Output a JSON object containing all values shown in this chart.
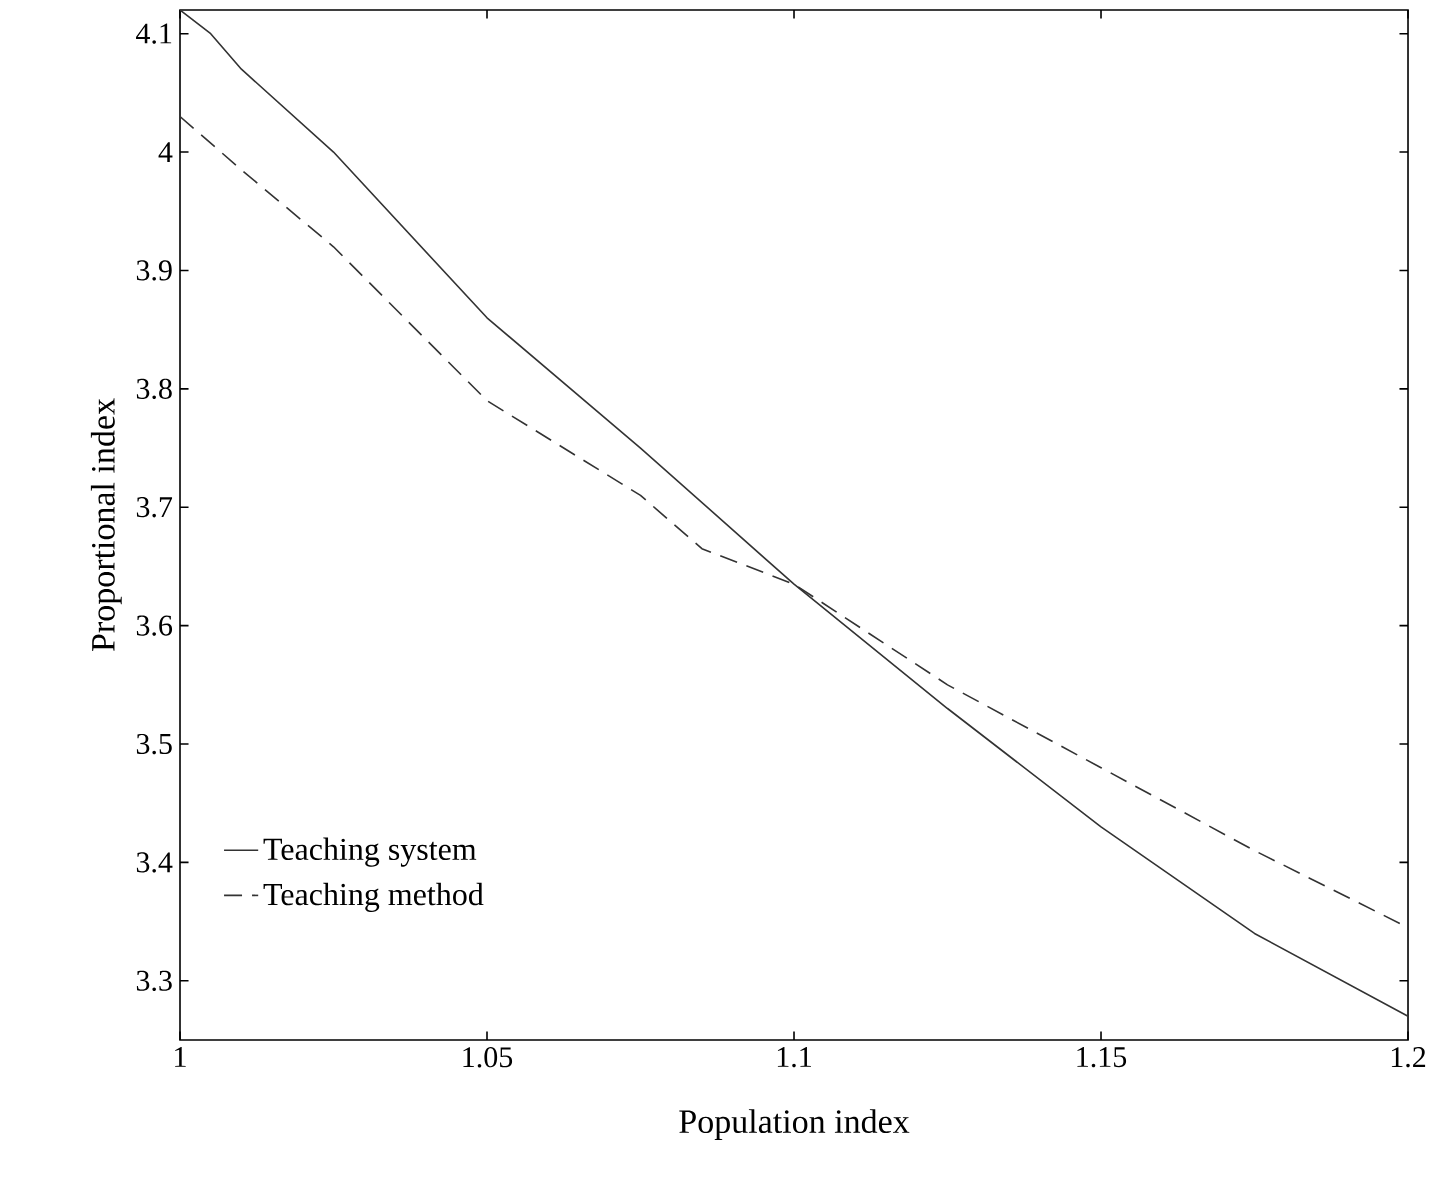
{
  "chart_data": {
    "type": "line",
    "xlabel": "Population index",
    "ylabel": "Proportional index",
    "xlim": [
      1,
      1.2
    ],
    "ylim": [
      3.25,
      4.12
    ],
    "xticks": [
      1,
      1.05,
      1.1,
      1.15,
      1.2
    ],
    "yticks": [
      3.3,
      3.4,
      3.5,
      3.6,
      3.7,
      3.8,
      3.9,
      {
        "value": 4,
        "label": "4"
      },
      4.1
    ],
    "legend": "bottom left",
    "grid": false,
    "series": [
      {
        "name": "Teaching system",
        "color": "#333333",
        "line_style": "solid",
        "x": [
          1.0,
          1.005,
          1.01,
          1.025,
          1.05,
          1.075,
          1.1,
          1.125,
          1.15,
          1.175,
          1.2
        ],
        "values": [
          4.12,
          4.1,
          4.07,
          4.0,
          3.86,
          3.75,
          3.635,
          3.53,
          3.43,
          3.34,
          3.27
        ]
      },
      {
        "name": "Teaching method",
        "color": "#333333",
        "line_style": "dashed",
        "x": [
          1.0,
          1.01,
          1.025,
          1.05,
          1.075,
          1.085,
          1.1,
          1.125,
          1.15,
          1.175,
          1.2
        ],
        "values": [
          4.03,
          3.985,
          3.92,
          3.79,
          3.71,
          3.665,
          3.635,
          3.55,
          3.48,
          3.41,
          3.345
        ]
      }
    ]
  }
}
